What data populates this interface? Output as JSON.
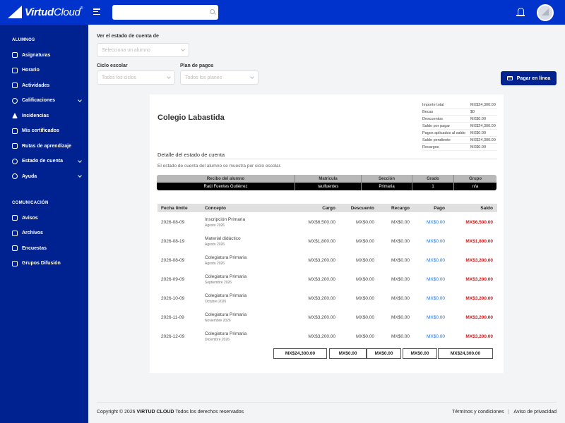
{
  "header": {
    "brand_bold": "Virtud",
    "brand_light": "Cloud",
    "brand_mark": "®",
    "search_placeholder": ""
  },
  "sidebar": {
    "sections": [
      {
        "title": "ALUMNOS",
        "items": [
          {
            "label": "Asignaturas",
            "icon": "book-icon",
            "chevron": false
          },
          {
            "label": "Horario",
            "icon": "calendar-icon",
            "chevron": false
          },
          {
            "label": "Actividades",
            "icon": "list-icon",
            "chevron": false
          },
          {
            "label": "Calificaciones",
            "icon": "check-circle-icon",
            "chevron": true
          },
          {
            "label": "Incidencias",
            "icon": "warning-icon",
            "chevron": false
          },
          {
            "label": "Mis certificados",
            "icon": "shield-icon",
            "chevron": false
          },
          {
            "label": "Rutas de aprendizaje",
            "icon": "route-icon",
            "chevron": false
          },
          {
            "label": "Estado de cuenta",
            "icon": "dollar-circle-icon",
            "chevron": true
          },
          {
            "label": "Ayuda",
            "icon": "question-circle-icon",
            "chevron": true
          }
        ]
      },
      {
        "title": "COMUNICACIÓN",
        "items": [
          {
            "label": "Avisos",
            "icon": "megaphone-icon",
            "chevron": false
          },
          {
            "label": "Archivos",
            "icon": "files-icon",
            "chevron": false
          },
          {
            "label": "Encuestas",
            "icon": "clipboard-icon",
            "chevron": false
          },
          {
            "label": "Grupos Difusión",
            "icon": "groups-icon",
            "chevron": false
          }
        ]
      }
    ]
  },
  "filters": {
    "student_label": "Ver el estado de cuenta de",
    "student_placeholder": "Selecciona un alumno",
    "cycle_label": "Ciclo escolar",
    "cycle_placeholder": "Todos los ciclos",
    "plan_label": "Plan de pagos",
    "plan_placeholder": "Todos los planes",
    "pay_button": "Pagar en línea"
  },
  "statement": {
    "school": "Colegio Labastida",
    "summary": [
      {
        "label": "Importe total",
        "value": "MX$24,300.00"
      },
      {
        "label": "Becas",
        "value": "$0"
      },
      {
        "label": "Descuentos",
        "value": "MX$0.00"
      },
      {
        "label": "Saldo por pagar",
        "value": "MX$24,300.00"
      },
      {
        "label": "Pagos aplicados al saldo",
        "value": "MX$0.00"
      },
      {
        "label": "Saldo pendiente",
        "value": "MX$24,300.00"
      },
      {
        "label": "Recargos",
        "value": "MX$0.00"
      }
    ],
    "detail_title": "Detalle del estado de cuenta",
    "detail_subtitle": "El estado de cuenta del alumno se muestra por ciclo escolar.",
    "student_table": {
      "headers": [
        "Recibo del alumno",
        "Matrícula",
        "Sección",
        "Grado",
        "Grupo"
      ],
      "row": [
        "Raúl Fuentes Gutiérrez",
        "raulfuentes",
        "Primaria",
        "1",
        "n/a"
      ]
    },
    "movements": {
      "headers": [
        "Fecha límite",
        "Concepto",
        "Cargo",
        "Descuento",
        "Recargo",
        "Pago",
        "Saldo"
      ],
      "rows": [
        {
          "date": "2026-08-09",
          "concept": "Inscripción Primaria",
          "period": "Agosto 2026",
          "charge": "MX$6,500.00",
          "discount": "MX$0.00",
          "surcharge": "MX$0.00",
          "payment": "MX$0.00",
          "balance": "MX$6,500.00"
        },
        {
          "date": "2026-08-19",
          "concept": "Material didáctico",
          "period": "Agosto 2026",
          "charge": "MX$1,800.00",
          "discount": "MX$0.00",
          "surcharge": "MX$0.00",
          "payment": "MX$0.00",
          "balance": "MX$1,800.00"
        },
        {
          "date": "2026-08-09",
          "concept": "Colegiatura Primaria",
          "period": "Agosto 2026",
          "charge": "MX$3,200.00",
          "discount": "MX$0.00",
          "surcharge": "MX$0.00",
          "payment": "MX$0.00",
          "balance": "MX$3,200.00"
        },
        {
          "date": "2026-09-09",
          "concept": "Colegiatura Primaria",
          "period": "Septiembre 2026",
          "charge": "MX$3,200.00",
          "discount": "MX$0.00",
          "surcharge": "MX$0.00",
          "payment": "MX$0.00",
          "balance": "MX$3,200.00"
        },
        {
          "date": "2026-10-09",
          "concept": "Colegiatura Primaria",
          "period": "Octubre 2026",
          "charge": "MX$3,200.00",
          "discount": "MX$0.00",
          "surcharge": "MX$0.00",
          "payment": "MX$0.00",
          "balance": "MX$3,200.00"
        },
        {
          "date": "2026-11-09",
          "concept": "Colegiatura Primaria",
          "period": "Noviembre 2026",
          "charge": "MX$3,200.00",
          "discount": "MX$0.00",
          "surcharge": "MX$0.00",
          "payment": "MX$0.00",
          "balance": "MX$3,200.00"
        },
        {
          "date": "2026-12-09",
          "concept": "Colegiatura Primaria",
          "period": "Diciembre 2026",
          "charge": "MX$3,200.00",
          "discount": "MX$0.00",
          "surcharge": "MX$0.00",
          "payment": "MX$0.00",
          "balance": "MX$3,200.00"
        }
      ],
      "totals": {
        "charge": "MX$24,300.00",
        "discount": "MX$0.00",
        "surcharge": "MX$0.00",
        "payment": "MX$0.00",
        "balance": "MX$24,300.00"
      }
    }
  },
  "footer": {
    "copyright_prefix": "Copyright © 2026",
    "copyright_brand": "VIRTUD CLOUD",
    "copyright_suffix": "Todos los derechos reservados",
    "terms": "Términos y condiciones",
    "separator": "|",
    "privacy": "Aviso de privacidad"
  },
  "colors": {
    "header": "#0033cc",
    "sidebar": "#002291",
    "payment_link": "#1a73e8",
    "balance_due": "#d01818"
  }
}
